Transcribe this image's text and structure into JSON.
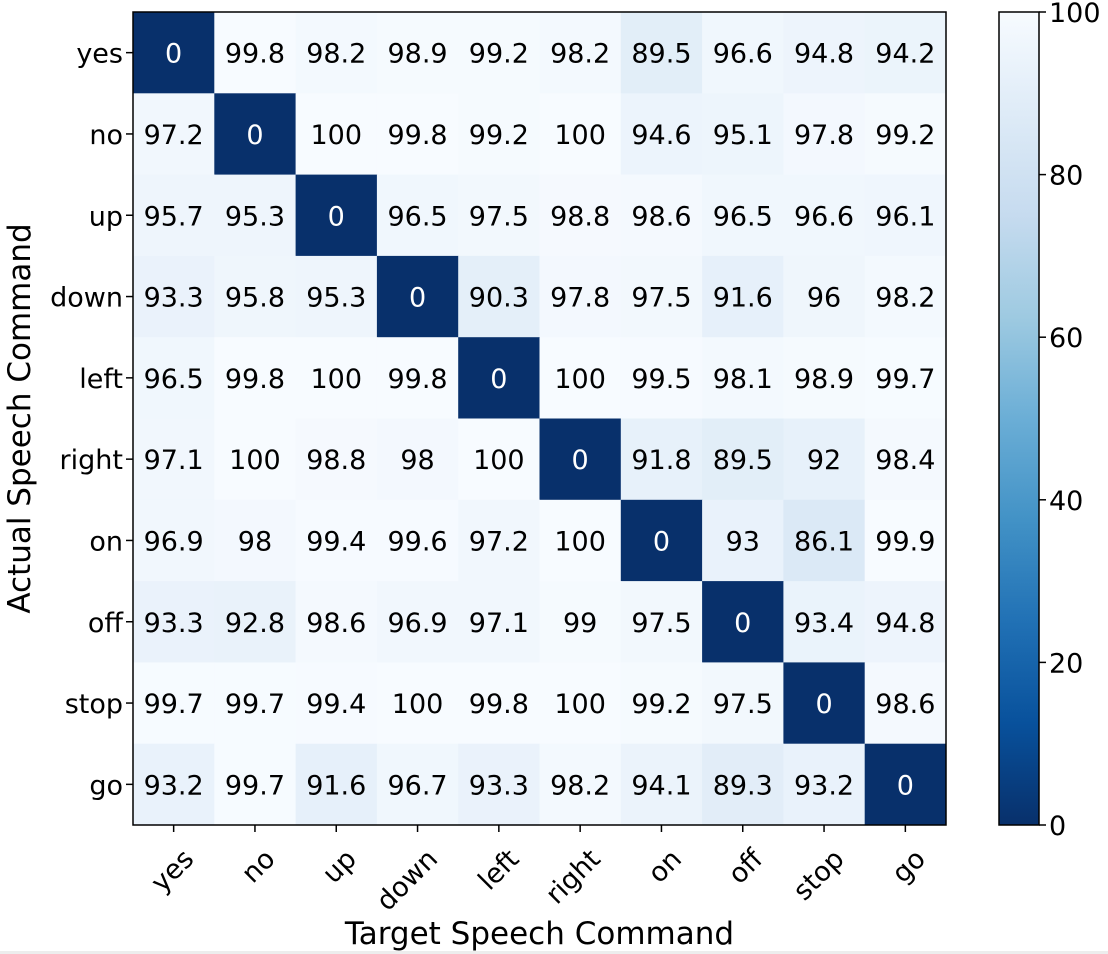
{
  "chart_data": {
    "type": "heatmap",
    "title": "",
    "xlabel": "Target Speech Command",
    "ylabel": "Actual Speech Command",
    "x_categories": [
      "yes",
      "no",
      "up",
      "down",
      "left",
      "right",
      "on",
      "off",
      "stop",
      "go"
    ],
    "y_categories": [
      "yes",
      "no",
      "up",
      "down",
      "left",
      "right",
      "on",
      "off",
      "stop",
      "go"
    ],
    "values": [
      [
        "0",
        "99.8",
        "98.2",
        "98.9",
        "99.2",
        "98.2",
        "89.5",
        "96.6",
        "94.8",
        "94.2"
      ],
      [
        "97.2",
        "0",
        "100",
        "99.8",
        "99.2",
        "100",
        "94.6",
        "95.1",
        "97.8",
        "99.2"
      ],
      [
        "95.7",
        "95.3",
        "0",
        "96.5",
        "97.5",
        "98.8",
        "98.6",
        "96.5",
        "96.6",
        "96.1"
      ],
      [
        "93.3",
        "95.8",
        "95.3",
        "0",
        "90.3",
        "97.8",
        "97.5",
        "91.6",
        "96",
        "98.2"
      ],
      [
        "96.5",
        "99.8",
        "100",
        "99.8",
        "0",
        "100",
        "99.5",
        "98.1",
        "98.9",
        "99.7"
      ],
      [
        "97.1",
        "100",
        "98.8",
        "98",
        "100",
        "0",
        "91.8",
        "89.5",
        "92",
        "98.4"
      ],
      [
        "96.9",
        "98",
        "99.4",
        "99.6",
        "97.2",
        "100",
        "0",
        "93",
        "86.1",
        "99.9"
      ],
      [
        "93.3",
        "92.8",
        "98.6",
        "96.9",
        "97.1",
        "99",
        "97.5",
        "0",
        "93.4",
        "94.8"
      ],
      [
        "99.7",
        "99.7",
        "99.4",
        "100",
        "99.8",
        "100",
        "99.2",
        "97.5",
        "0",
        "98.6"
      ],
      [
        "93.2",
        "99.7",
        "91.6",
        "96.7",
        "93.3",
        "98.2",
        "94.1",
        "89.3",
        "93.2",
        "0"
      ]
    ],
    "color_range": [
      0,
      100
    ],
    "colorbar_ticks": [
      "0",
      "20",
      "40",
      "60",
      "80",
      "100"
    ],
    "colormap": "Blues_r",
    "colors": {
      "low": "#08306b",
      "high": "#f7fbff"
    },
    "grid": false
  }
}
